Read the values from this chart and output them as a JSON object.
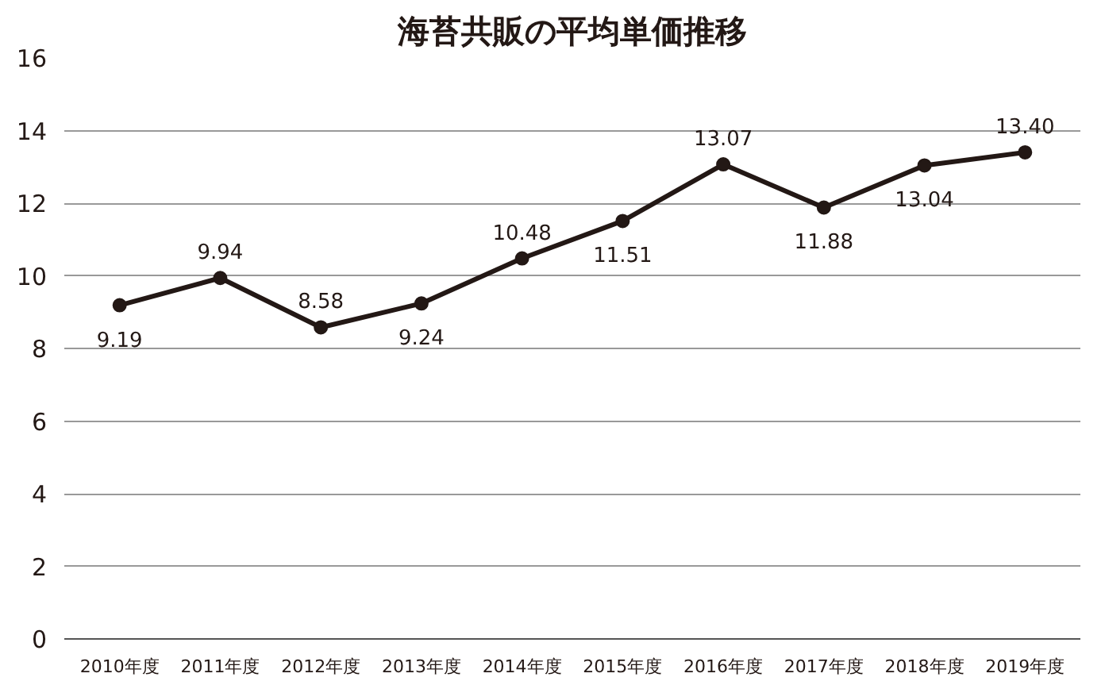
{
  "chart_data": {
    "type": "line",
    "title": "海苔共販の平均単価推移",
    "categories": [
      "2010年度",
      "2011年度",
      "2012年度",
      "2013年度",
      "2014年度",
      "2015年度",
      "2016年度",
      "2017年度",
      "2018年度",
      "2019年度"
    ],
    "series": [
      {
        "color": "#231815",
        "values": [
          9.19,
          9.94,
          8.58,
          9.24,
          10.48,
          11.51,
          13.07,
          11.88,
          13.04,
          13.4
        ]
      }
    ],
    "value_labels": [
      "9.19",
      "9.94",
      "8.58",
      "9.24",
      "10.48",
      "11.51",
      "13.07",
      "11.88",
      "13.04",
      "13.40"
    ],
    "ylim": [
      0,
      16
    ],
    "yticks": [
      0,
      2,
      4,
      6,
      8,
      10,
      12,
      14,
      16
    ],
    "grid": "y",
    "marker": "circle",
    "line_style": "solid"
  }
}
